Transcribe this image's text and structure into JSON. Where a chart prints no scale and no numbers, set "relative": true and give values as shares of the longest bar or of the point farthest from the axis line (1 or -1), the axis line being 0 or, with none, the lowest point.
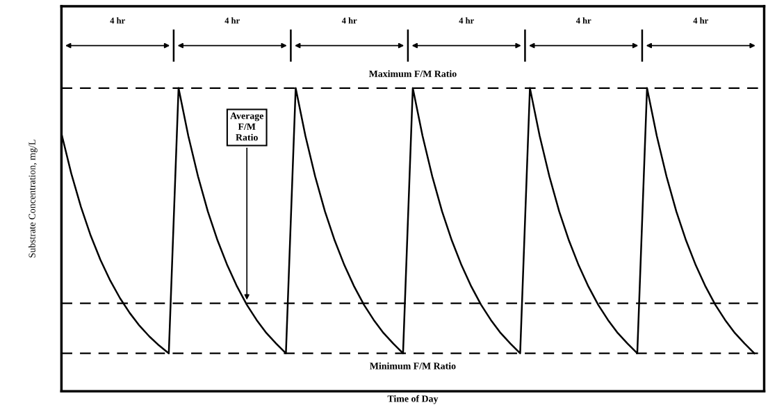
{
  "chart_data": {
    "type": "line",
    "relative": true,
    "xlabel": "Time of Day",
    "ylabel": "Substrate Concentration, mg/L",
    "categories": [
      null,
      null,
      null,
      null,
      null,
      null,
      null,
      null,
      null,
      null,
      null,
      null,
      null,
      null,
      null,
      null,
      null,
      null,
      null,
      null,
      null,
      null,
      null,
      null,
      null,
      null,
      null,
      null,
      null,
      null,
      null,
      null,
      null,
      null,
      null,
      null,
      null,
      null,
      null,
      null,
      null,
      null,
      null,
      null,
      null,
      null,
      null,
      null,
      null,
      null,
      null,
      null,
      null,
      null,
      null,
      null,
      null,
      null,
      null,
      null,
      null,
      null,
      null,
      null,
      null,
      null,
      null,
      null,
      null,
      null,
      null,
      null
    ],
    "series": [
      {
        "color": "#000000",
        "values": [
          0.85,
          0.719,
          0.608,
          0.513,
          0.433,
          0.365,
          0.307,
          0.258,
          0.216,
          0.181,
          0.151,
          0.125,
          1,
          0.842,
          0.708,
          0.593,
          0.497,
          0.415,
          0.345,
          0.285,
          0.235,
          0.192,
          0.157,
          0.125,
          1,
          0.842,
          0.708,
          0.593,
          0.497,
          0.415,
          0.345,
          0.285,
          0.235,
          0.192,
          0.157,
          0.125,
          1,
          0.842,
          0.708,
          0.593,
          0.497,
          0.415,
          0.345,
          0.285,
          0.235,
          0.192,
          0.157,
          0.125,
          1,
          0.842,
          0.708,
          0.593,
          0.497,
          0.415,
          0.345,
          0.285,
          0.235,
          0.192,
          0.157,
          0.125,
          1,
          0.842,
          0.708,
          0.593,
          0.497,
          0.415,
          0.345,
          0.285,
          0.235,
          0.192,
          0.157,
          0.125
        ]
      }
    ],
    "ref_lines": [
      {
        "axis": "y",
        "value": 1,
        "label": "Maximum F/M Ratio",
        "line_style": "dashed",
        "color": "#000000"
      },
      {
        "axis": "y",
        "value": 0.29,
        "label": "Average\nF/M\nRatio",
        "line_style": "dashed",
        "color": "#000000"
      },
      {
        "axis": "y",
        "value": 0.125,
        "label": "Minimum F/M Ratio",
        "line_style": "dashed",
        "color": "#000000"
      }
    ],
    "annotations": [
      "4 hr",
      "4 hr",
      "4 hr",
      "4 hr",
      "4 hr",
      "4 hr"
    ],
    "marker": "none",
    "line_style": "solid"
  }
}
